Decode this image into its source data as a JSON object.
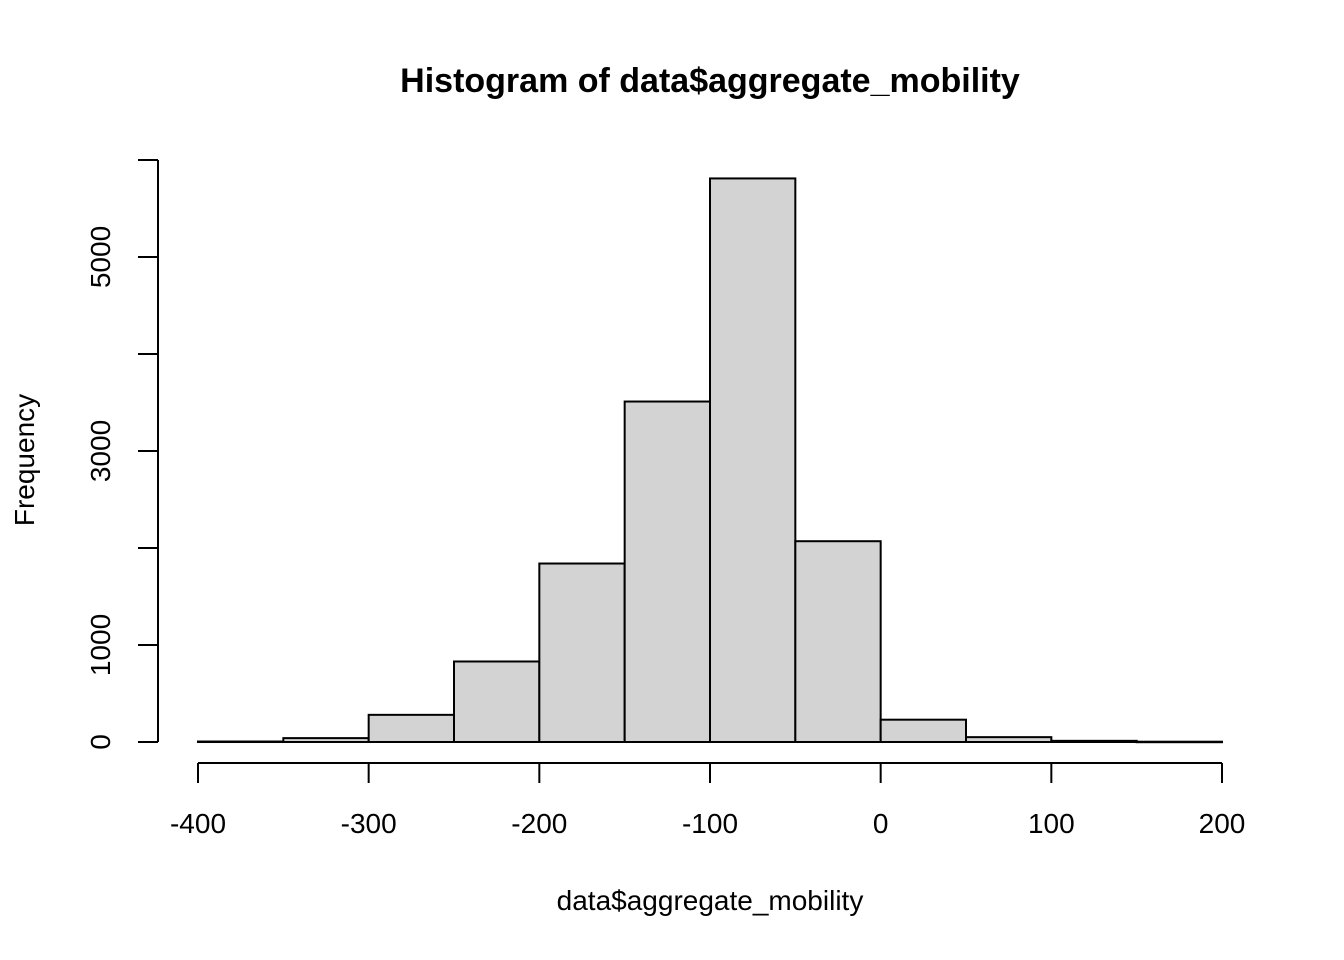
{
  "chart_data": {
    "type": "bar",
    "title": "Histogram of data$aggregate_mobility",
    "xlabel": "data$aggregate_mobility",
    "ylabel": "Frequency",
    "xlim": [
      -400,
      200
    ],
    "ylim": [
      0,
      6000
    ],
    "x_ticks": [
      "-400",
      "-300",
      "-200",
      "-100",
      "0",
      "100",
      "200"
    ],
    "y_ticks": [
      "0",
      "1000",
      "3000",
      "5000"
    ],
    "bins": [
      {
        "from": -400,
        "to": -350,
        "count": 5
      },
      {
        "from": -350,
        "to": -300,
        "count": 40
      },
      {
        "from": -300,
        "to": -250,
        "count": 280
      },
      {
        "from": -250,
        "to": -200,
        "count": 830
      },
      {
        "from": -200,
        "to": -150,
        "count": 1840
      },
      {
        "from": -150,
        "to": -100,
        "count": 3510
      },
      {
        "from": -100,
        "to": -50,
        "count": 5810
      },
      {
        "from": -50,
        "to": 0,
        "count": 2070
      },
      {
        "from": 0,
        "to": 50,
        "count": 230
      },
      {
        "from": 50,
        "to": 100,
        "count": 50
      },
      {
        "from": 100,
        "to": 150,
        "count": 12
      },
      {
        "from": 150,
        "to": 200,
        "count": 3
      }
    ],
    "colors": {
      "bar_fill": "#d3d3d3",
      "bar_stroke": "#000000"
    },
    "grid": false
  }
}
